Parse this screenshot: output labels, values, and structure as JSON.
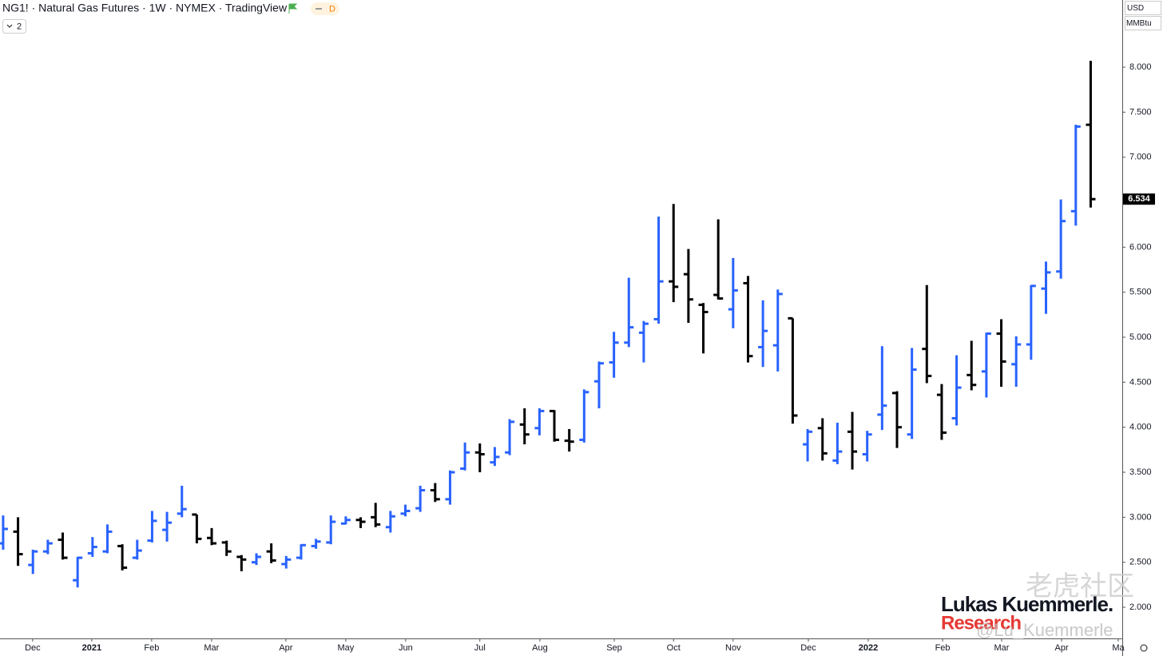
{
  "chart_data": {
    "type": "ohlc",
    "title": "NG1! · Natural Gas Futures · 1W · NYMEX · TradingView",
    "interval_badge": "D",
    "legend_toggle": "2",
    "currency": "USD",
    "unit": "MMBtu",
    "last_label": "6.534",
    "watermark": {
      "name": "Lukas Kuemmerle.",
      "sub": "Research",
      "handle": "@Lu_Kuemmerle",
      "site": "老虎社区"
    },
    "up_color": "#2962ff",
    "down_color": "#000000",
    "categories": [
      null,
      null,
      null,
      null,
      null,
      null,
      null,
      null,
      null,
      null,
      null,
      null,
      null,
      null,
      null,
      null,
      null,
      null,
      null,
      null,
      null,
      null,
      null,
      null,
      null,
      null,
      null,
      null,
      null,
      null,
      null,
      null,
      null,
      null,
      null,
      null,
      null,
      null,
      null,
      null,
      null,
      null,
      null,
      null,
      null,
      null,
      null,
      null,
      null,
      null,
      null,
      null,
      null,
      null,
      null,
      null,
      null,
      null,
      null,
      null,
      null,
      null,
      null,
      null,
      null,
      null,
      null,
      null,
      null,
      null,
      null,
      null,
      null,
      null
    ],
    "open": [
      2.71,
      2.84,
      2.47,
      2.62,
      2.75,
      2.3,
      2.6,
      2.62,
      2.68,
      2.55,
      2.74,
      2.86,
      3.04,
      3.03,
      2.77,
      2.72,
      2.56,
      2.5,
      2.62,
      2.48,
      2.55,
      2.68,
      2.72,
      2.93,
      2.97,
      3.0,
      2.89,
      3.04,
      3.1,
      3.3,
      3.2,
      3.54,
      3.72,
      3.61,
      3.72,
      4.03,
      3.99,
      4.18,
      3.85,
      3.86,
      4.51,
      4.72,
      4.94,
      5.05,
      5.2,
      5.62,
      5.7,
      5.36,
      5.47,
      5.31,
      5.6,
      4.89,
      4.91,
      5.21,
      3.81,
      3.99,
      3.63,
      3.95,
      3.7,
      4.14,
      4.38,
      3.92,
      4.87,
      4.36,
      4.1,
      4.58,
      4.62,
      5.04,
      4.7,
      4.92,
      5.54,
      5.73,
      6.4,
      7.36
    ],
    "high": [
      3.02,
      3.0,
      2.64,
      2.75,
      2.83,
      2.56,
      2.78,
      2.92,
      2.7,
      2.75,
      3.07,
      3.06,
      3.35,
      3.03,
      2.88,
      2.74,
      2.58,
      2.6,
      2.71,
      2.57,
      2.7,
      2.76,
      3.02,
      3.01,
      3.0,
      3.16,
      3.07,
      3.14,
      3.35,
      3.38,
      3.52,
      3.83,
      3.82,
      3.78,
      4.09,
      4.21,
      4.21,
      4.19,
      3.98,
      4.42,
      4.73,
      5.06,
      5.66,
      5.18,
      6.34,
      6.48,
      5.98,
      5.38,
      6.31,
      5.88,
      5.68,
      5.41,
      5.53,
      5.21,
      3.98,
      4.1,
      4.05,
      4.17,
      3.96,
      4.9,
      4.4,
      4.88,
      5.58,
      4.48,
      4.8,
      4.96,
      5.05,
      5.2,
      5.01,
      5.58,
      5.84,
      6.53,
      7.36,
      8.07
    ],
    "low": [
      2.64,
      2.46,
      2.37,
      2.59,
      2.53,
      2.22,
      2.56,
      2.6,
      2.41,
      2.53,
      2.72,
      2.73,
      3.0,
      2.71,
      2.69,
      2.57,
      2.4,
      2.47,
      2.49,
      2.43,
      2.53,
      2.65,
      2.7,
      2.92,
      2.88,
      2.89,
      2.83,
      3.01,
      3.06,
      3.17,
      3.14,
      3.52,
      3.5,
      3.57,
      3.69,
      3.81,
      3.91,
      3.84,
      3.73,
      3.83,
      4.21,
      4.55,
      4.89,
      4.72,
      5.15,
      5.39,
      5.16,
      4.82,
      5.42,
      5.1,
      4.72,
      4.67,
      4.62,
      4.04,
      3.62,
      3.63,
      3.59,
      3.53,
      3.62,
      3.97,
      3.77,
      3.87,
      4.49,
      3.86,
      4.02,
      4.41,
      4.33,
      4.45,
      4.45,
      4.75,
      5.26,
      5.65,
      6.24,
      6.44
    ],
    "close": [
      2.87,
      2.59,
      2.62,
      2.71,
      2.55,
      2.55,
      2.67,
      2.84,
      2.44,
      2.63,
      2.96,
      2.94,
      3.09,
      2.76,
      2.71,
      2.62,
      2.53,
      2.56,
      2.52,
      2.53,
      2.69,
      2.73,
      2.95,
      2.97,
      2.95,
      2.92,
      3.01,
      3.07,
      3.3,
      3.2,
      3.5,
      3.72,
      3.7,
      3.67,
      4.06,
      3.92,
      4.18,
      3.86,
      3.84,
      4.39,
      4.71,
      4.94,
      5.11,
      5.15,
      5.62,
      5.56,
      5.42,
      5.28,
      5.43,
      5.52,
      4.79,
      5.07,
      5.48,
      4.13,
      3.95,
      3.71,
      3.73,
      3.73,
      3.92,
      4.24,
      4.0,
      4.64,
      4.57,
      3.94,
      4.44,
      4.47,
      5.04,
      4.73,
      4.92,
      5.57,
      5.72,
      6.29,
      7.34,
      6.534
    ],
    "xlim": [
      -0.21,
      75.12
    ],
    "xticks": [
      {
        "value": 1.98,
        "label": "Dec"
      },
      {
        "value": 5.95,
        "label": "2021"
      },
      {
        "value": 9.97,
        "label": "Feb"
      },
      {
        "value": 13.99,
        "label": "Mar"
      },
      {
        "value": 18.98,
        "label": "Apr"
      },
      {
        "value": 23.0,
        "label": "May"
      },
      {
        "value": 27.02,
        "label": "Jun"
      },
      {
        "value": 32.0,
        "label": "Jul"
      },
      {
        "value": 36.03,
        "label": "Aug"
      },
      {
        "value": 41.02,
        "label": "Sep"
      },
      {
        "value": 45.0,
        "label": "Oct"
      },
      {
        "value": 49.0,
        "label": "Nov"
      },
      {
        "value": 54.05,
        "label": "Dec"
      },
      {
        "value": 58.07,
        "label": "2022"
      },
      {
        "value": 63.06,
        "label": "Feb"
      },
      {
        "value": 67.02,
        "label": "Mar"
      },
      {
        "value": 71.05,
        "label": "Apr"
      },
      {
        "value": 74.85,
        "label": "Ma"
      }
    ],
    "ylim": [
      1.654,
      8.746
    ],
    "yticks": [
      {
        "value": 2,
        "label": "2.000"
      },
      {
        "value": 2.5,
        "label": "2.500"
      },
      {
        "value": 3,
        "label": "3.000"
      },
      {
        "value": 3.5,
        "label": "3.500"
      },
      {
        "value": 4,
        "label": "4.000"
      },
      {
        "value": 4.5,
        "label": "4.500"
      },
      {
        "value": 5,
        "label": "5.000"
      },
      {
        "value": 5.5,
        "label": "5.500"
      },
      {
        "value": 6,
        "label": "6.000"
      },
      {
        "value": 6.5,
        "label": "6.500"
      },
      {
        "value": 7,
        "label": "7.000"
      },
      {
        "value": 7.5,
        "label": "7.500"
      },
      {
        "value": 8,
        "label": "8.000"
      }
    ]
  }
}
